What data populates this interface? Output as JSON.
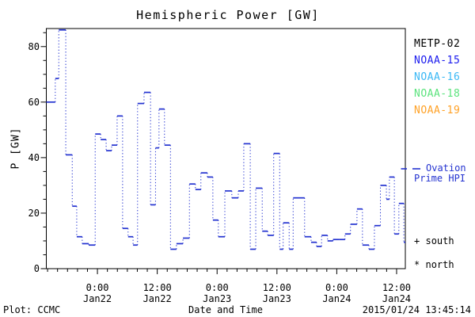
{
  "figure": {
    "title": "Hemispheric Power [GW]",
    "footer": {
      "plot_source": "Plot: CCMC",
      "xlabel": "Date and Time",
      "timestamp": "2015/01/24 13:45:14"
    }
  },
  "legend": {
    "satellites": [
      {
        "label": "METP-02",
        "color": "#000000"
      },
      {
        "label": "NOAA-15",
        "color": "#1a1aee"
      },
      {
        "label": "NOAA-16",
        "color": "#3bb8f5"
      },
      {
        "label": "NOAA-18",
        "color": "#5be37d"
      },
      {
        "label": "NOAA-19",
        "color": "#ffa126"
      }
    ],
    "model_line": {
      "name_line1": "Ovation",
      "name_line2": "Prime HPI",
      "color": "#2433d0",
      "sample_style": "dashed"
    },
    "markers": [
      {
        "symbol": "+",
        "label": "south"
      },
      {
        "symbol": "*",
        "label": "north"
      }
    ]
  },
  "chart_data": {
    "type": "line",
    "subtype": "step-dotted",
    "title": "Hemispheric Power [GW]",
    "xlabel": "Date and Time",
    "ylabel": "P [GW]",
    "series_name": "Ovation Prime HPI",
    "line_color": "#2433d0",
    "grid": false,
    "ylim": [
      0,
      86.5
    ],
    "y_major_ticks": [
      0,
      20,
      40,
      60,
      80
    ],
    "y_minor_step": 5,
    "x_span_hours": 72,
    "x_start": "2015 Jan21 ~13:45",
    "x_minor_step_hours": 2,
    "x_major_ticks": [
      {
        "hour": 10.25,
        "time": "0:00",
        "date": "Jan22"
      },
      {
        "hour": 22.25,
        "time": "12:00",
        "date": "Jan22"
      },
      {
        "hour": 34.25,
        "time": "0:00",
        "date": "Jan23"
      },
      {
        "hour": 46.25,
        "time": "12:00",
        "date": "Jan23"
      },
      {
        "hour": 58.25,
        "time": "0:00",
        "date": "Jan24"
      },
      {
        "hour": 70.25,
        "time": "12:00",
        "date": "Jan24"
      }
    ],
    "end_hour": 72,
    "steps": [
      {
        "h": 0,
        "gw": 60
      },
      {
        "h": 1.8,
        "gw": 68.5
      },
      {
        "h": 2.5,
        "gw": 86
      },
      {
        "h": 3.9,
        "gw": 41
      },
      {
        "h": 5.2,
        "gw": 22.5
      },
      {
        "h": 6.1,
        "gw": 11.5
      },
      {
        "h": 7.2,
        "gw": 9
      },
      {
        "h": 8.5,
        "gw": 8.5
      },
      {
        "h": 9.8,
        "gw": 48.5
      },
      {
        "h": 10.9,
        "gw": 46.5
      },
      {
        "h": 12,
        "gw": 42.5
      },
      {
        "h": 13.1,
        "gw": 44.5
      },
      {
        "h": 14.2,
        "gw": 55
      },
      {
        "h": 15.3,
        "gw": 14.5
      },
      {
        "h": 16.4,
        "gw": 11.5
      },
      {
        "h": 17.4,
        "gw": 8.5
      },
      {
        "h": 18.3,
        "gw": 59.5
      },
      {
        "h": 19.6,
        "gw": 63.5
      },
      {
        "h": 20.9,
        "gw": 23
      },
      {
        "h": 21.9,
        "gw": 43.5
      },
      {
        "h": 22.6,
        "gw": 57.5
      },
      {
        "h": 23.7,
        "gw": 44.5
      },
      {
        "h": 24.9,
        "gw": 7
      },
      {
        "h": 26.1,
        "gw": 9
      },
      {
        "h": 27.4,
        "gw": 11
      },
      {
        "h": 28.7,
        "gw": 30.5
      },
      {
        "h": 29.9,
        "gw": 28.5
      },
      {
        "h": 31,
        "gw": 34.5
      },
      {
        "h": 32.3,
        "gw": 33
      },
      {
        "h": 33.4,
        "gw": 17.5
      },
      {
        "h": 34.5,
        "gw": 11.5
      },
      {
        "h": 35.8,
        "gw": 28
      },
      {
        "h": 37.2,
        "gw": 25.5
      },
      {
        "h": 38.5,
        "gw": 28
      },
      {
        "h": 39.6,
        "gw": 45
      },
      {
        "h": 40.9,
        "gw": 7
      },
      {
        "h": 42,
        "gw": 29
      },
      {
        "h": 43.3,
        "gw": 13.5
      },
      {
        "h": 44.4,
        "gw": 12
      },
      {
        "h": 45.6,
        "gw": 41.5
      },
      {
        "h": 46.8,
        "gw": 7
      },
      {
        "h": 47.5,
        "gw": 16.5
      },
      {
        "h": 48.7,
        "gw": 7
      },
      {
        "h": 49.5,
        "gw": 25.5
      },
      {
        "h": 51.8,
        "gw": 11.5
      },
      {
        "h": 53.1,
        "gw": 9.5
      },
      {
        "h": 54.2,
        "gw": 8
      },
      {
        "h": 55.2,
        "gw": 12
      },
      {
        "h": 56.4,
        "gw": 10
      },
      {
        "h": 57.5,
        "gw": 10.5
      },
      {
        "h": 58.8,
        "gw": 10.5
      },
      {
        "h": 59.9,
        "gw": 12.5
      },
      {
        "h": 61,
        "gw": 16
      },
      {
        "h": 62.3,
        "gw": 21.5
      },
      {
        "h": 63.4,
        "gw": 8.5
      },
      {
        "h": 64.7,
        "gw": 7
      },
      {
        "h": 65.8,
        "gw": 15.5
      },
      {
        "h": 67,
        "gw": 30
      },
      {
        "h": 68.2,
        "gw": 25
      },
      {
        "h": 68.8,
        "gw": 33
      },
      {
        "h": 69.8,
        "gw": 12.5
      },
      {
        "h": 70.7,
        "gw": 23.5
      },
      {
        "h": 71.7,
        "gw": 9.5
      }
    ]
  }
}
